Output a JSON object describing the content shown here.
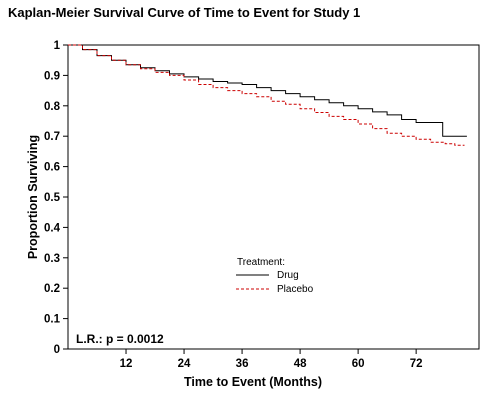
{
  "chart_data": {
    "type": "line",
    "title": "Kaplan-Meier Survival Curve of Time to Event for Study 1",
    "xlabel": "Time to Event (Months)",
    "ylabel": "Proportion Surviving",
    "xlim": [
      0,
      85
    ],
    "ylim": [
      0,
      1
    ],
    "x_ticks": [
      12,
      24,
      36,
      48,
      60,
      72
    ],
    "y_ticks": [
      0,
      0.1,
      0.2,
      0.3,
      0.4,
      0.5,
      0.6,
      0.7,
      0.8,
      0.9,
      1
    ],
    "y_tick_labels": [
      "0",
      "0.1",
      "0.2",
      "0.3",
      "0.4",
      "0.5",
      "0.6",
      "0.7",
      "0.8",
      "0.9",
      "1"
    ],
    "grid": false,
    "legend": {
      "title": "Treatment:",
      "placement": "center"
    },
    "annotation": "L.R.: p = 0.0012",
    "series": [
      {
        "name": "Drug",
        "color": "#000000",
        "style": "solid",
        "points": [
          [
            0,
            1.0
          ],
          [
            3,
            0.985
          ],
          [
            6,
            0.965
          ],
          [
            9,
            0.95
          ],
          [
            12,
            0.935
          ],
          [
            15,
            0.925
          ],
          [
            18,
            0.915
          ],
          [
            21,
            0.905
          ],
          [
            24,
            0.895
          ],
          [
            27,
            0.888
          ],
          [
            30,
            0.88
          ],
          [
            33,
            0.875
          ],
          [
            36,
            0.87
          ],
          [
            39,
            0.86
          ],
          [
            42,
            0.85
          ],
          [
            45,
            0.84
          ],
          [
            48,
            0.83
          ],
          [
            51,
            0.82
          ],
          [
            54,
            0.81
          ],
          [
            57,
            0.8
          ],
          [
            60,
            0.79
          ],
          [
            63,
            0.78
          ],
          [
            66,
            0.77
          ],
          [
            69,
            0.755
          ],
          [
            72,
            0.745
          ],
          [
            75,
            0.745
          ],
          [
            77.5,
            0.745
          ],
          [
            77.5,
            0.7
          ],
          [
            82.5,
            0.7
          ]
        ]
      },
      {
        "name": "Placebo",
        "color": "#cc0000",
        "style": "dashed",
        "points": [
          [
            0,
            1.0
          ],
          [
            3,
            0.985
          ],
          [
            6,
            0.965
          ],
          [
            9,
            0.95
          ],
          [
            12,
            0.935
          ],
          [
            15,
            0.922
          ],
          [
            18,
            0.91
          ],
          [
            21,
            0.9
          ],
          [
            24,
            0.885
          ],
          [
            27,
            0.87
          ],
          [
            30,
            0.86
          ],
          [
            33,
            0.85
          ],
          [
            36,
            0.84
          ],
          [
            39,
            0.83
          ],
          [
            42,
            0.815
          ],
          [
            45,
            0.805
          ],
          [
            48,
            0.79
          ],
          [
            51,
            0.778
          ],
          [
            54,
            0.765
          ],
          [
            57,
            0.755
          ],
          [
            60,
            0.74
          ],
          [
            63,
            0.725
          ],
          [
            66,
            0.71
          ],
          [
            69,
            0.7
          ],
          [
            72,
            0.69
          ],
          [
            75,
            0.68
          ],
          [
            78,
            0.675
          ],
          [
            80,
            0.67
          ],
          [
            82,
            0.67
          ]
        ]
      }
    ]
  }
}
